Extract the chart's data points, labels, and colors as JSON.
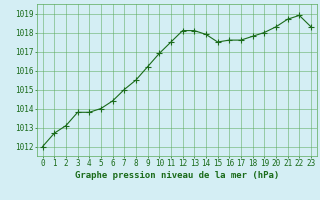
{
  "x": [
    0,
    1,
    2,
    3,
    4,
    5,
    6,
    7,
    8,
    9,
    10,
    11,
    12,
    13,
    14,
    15,
    16,
    17,
    18,
    19,
    20,
    21,
    22,
    23
  ],
  "y": [
    1012.0,
    1012.7,
    1013.1,
    1013.8,
    1013.8,
    1014.0,
    1014.4,
    1015.0,
    1015.5,
    1016.2,
    1016.9,
    1017.5,
    1018.1,
    1018.1,
    1017.9,
    1017.5,
    1017.6,
    1017.6,
    1017.8,
    1018.0,
    1018.3,
    1018.7,
    1018.9,
    1018.3
  ],
  "line_color": "#1a6b1a",
  "marker": "P",
  "marker_size": 2.5,
  "bg_color": "#d4eef4",
  "grid_color": "#5aaa5a",
  "ylabel_ticks": [
    1012,
    1013,
    1014,
    1015,
    1016,
    1017,
    1018,
    1019
  ],
  "xticks": [
    0,
    1,
    2,
    3,
    4,
    5,
    6,
    7,
    8,
    9,
    10,
    11,
    12,
    13,
    14,
    15,
    16,
    17,
    18,
    19,
    20,
    21,
    22,
    23
  ],
  "ylim": [
    1011.5,
    1019.5
  ],
  "xlim": [
    -0.5,
    23.5
  ],
  "xlabel": "Graphe pression niveau de la mer (hPa)",
  "xlabel_color": "#1a6b1a",
  "xlabel_fontsize": 6.5,
  "tick_fontsize": 5.5,
  "tick_color": "#1a6b1a",
  "grid_alpha": 0.9,
  "grid_linewidth": 0.4
}
